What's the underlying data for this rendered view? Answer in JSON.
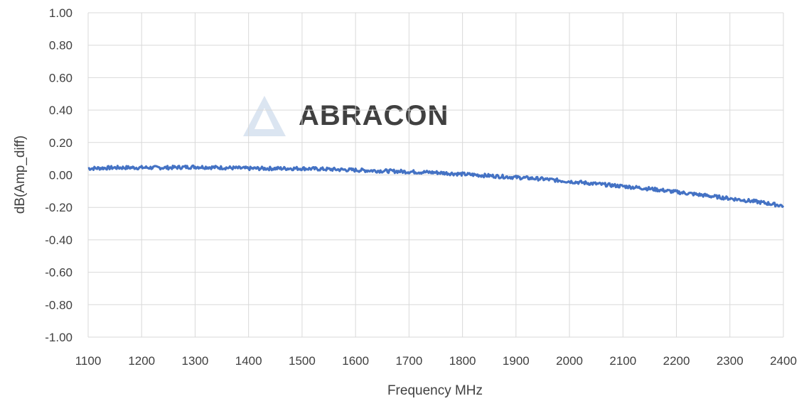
{
  "chart_data": {
    "type": "line",
    "title": "",
    "xlabel": "Frequency MHz",
    "ylabel": "dB(Amp_diff)",
    "xlim": [
      1100,
      2400
    ],
    "ylim": [
      -1.0,
      1.0
    ],
    "x_ticks": [
      "1100",
      "1200",
      "1300",
      "1400",
      "1500",
      "1600",
      "1700",
      "1800",
      "1900",
      "2000",
      "2100",
      "2200",
      "2300",
      "2400"
    ],
    "y_ticks": [
      "1.00",
      "0.80",
      "0.60",
      "0.40",
      "0.20",
      "0.00",
      "-0.20",
      "-0.40",
      "-0.60",
      "-0.80",
      "-1.00"
    ],
    "grid": true,
    "legend": "none",
    "series": [
      {
        "color": "#4472C4",
        "x": [
          1100,
          1150,
          1200,
          1250,
          1300,
          1350,
          1400,
          1450,
          1500,
          1550,
          1600,
          1650,
          1700,
          1750,
          1800,
          1850,
          1900,
          1950,
          2000,
          2050,
          2100,
          2150,
          2200,
          2250,
          2300,
          2350,
          2400
        ],
        "y": [
          0.04,
          0.045,
          0.045,
          0.045,
          0.05,
          0.045,
          0.04,
          0.04,
          0.04,
          0.035,
          0.03,
          0.025,
          0.02,
          0.015,
          0.005,
          -0.005,
          -0.015,
          -0.025,
          -0.04,
          -0.055,
          -0.07,
          -0.085,
          -0.105,
          -0.125,
          -0.145,
          -0.165,
          -0.19
        ]
      }
    ]
  },
  "watermark": {
    "text": "ABRACON",
    "color": "#dbe5f1"
  }
}
